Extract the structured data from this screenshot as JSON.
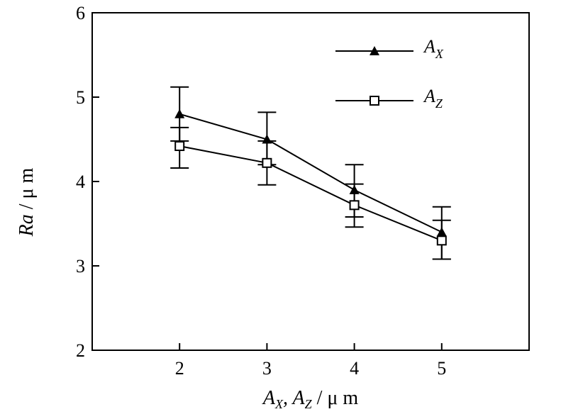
{
  "chart_data": {
    "type": "line",
    "xlabel": {
      "main": "A",
      "sub1": "X",
      "sep": ", A",
      "sub2": "Z",
      "unit": " / μ m"
    },
    "ylabel": {
      "italic": "Ra",
      "unit": " / μ m"
    },
    "xlim": [
      1,
      6
    ],
    "ylim": [
      2,
      6
    ],
    "xticks": [
      2,
      3,
      4,
      5
    ],
    "yticks": [
      2,
      3,
      4,
      5,
      6
    ],
    "grid": false,
    "legend_position": "top-right",
    "series": [
      {
        "name": "A",
        "name_sub": "X",
        "marker": "filled-triangle",
        "x": [
          2,
          3,
          4,
          5
        ],
        "y": [
          4.8,
          4.5,
          3.9,
          3.4
        ],
        "err_low": [
          4.48,
          4.2,
          3.58,
          3.08
        ],
        "err_high": [
          5.12,
          4.82,
          4.2,
          3.7
        ]
      },
      {
        "name": "A",
        "name_sub": "Z",
        "marker": "open-square",
        "x": [
          2,
          3,
          4,
          5
        ],
        "y": [
          4.42,
          4.22,
          3.72,
          3.3
        ],
        "err_low": [
          4.16,
          3.96,
          3.46,
          3.08
        ],
        "err_high": [
          4.64,
          4.48,
          3.97,
          3.54
        ]
      }
    ]
  }
}
